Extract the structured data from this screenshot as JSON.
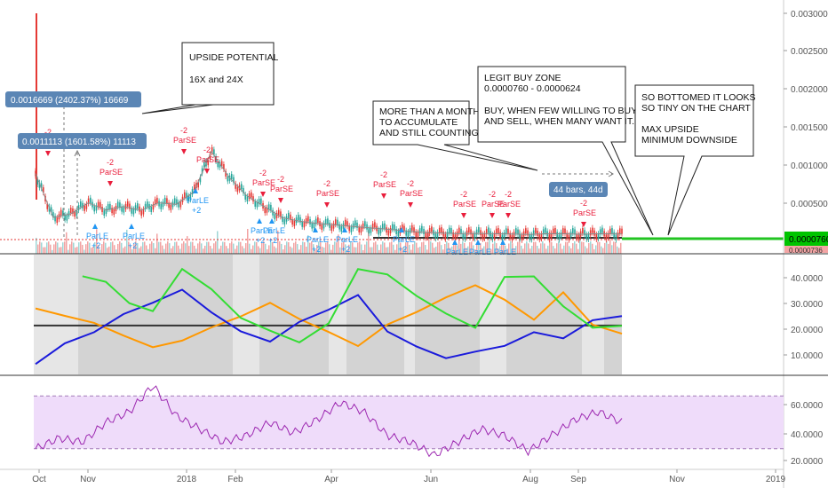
{
  "chart_data": [
    {
      "type": "candlestick",
      "panel": "price",
      "y_axis_ticks": [
        "0.0030000",
        "0.0025000",
        "0.0020000",
        "0.0015000",
        "0.0010000",
        "0.0005000"
      ],
      "ylim": [
        0,
        0.0031
      ],
      "current_price": "0.0000760",
      "current_price_color": "#00c400",
      "last_volume_label": "0.0000736",
      "price_path_x": [
        0.0,
        0.03,
        0.06,
        0.09,
        0.12,
        0.15,
        0.18,
        0.21,
        0.24,
        0.27,
        0.3,
        0.33,
        0.36,
        0.39,
        0.42,
        0.45,
        0.48,
        0.51,
        0.54,
        0.57,
        0.6,
        0.63,
        0.66,
        0.69,
        0.72,
        0.75,
        0.78,
        0.81,
        0.84,
        0.87,
        0.9,
        0.93,
        0.96,
        1.0
      ],
      "price_path_y": [
        0.0009,
        0.0003,
        0.00035,
        0.0005,
        0.0004,
        0.00045,
        0.0004,
        0.0005,
        0.00048,
        0.00065,
        0.0012,
        0.00085,
        0.0006,
        0.00045,
        0.0003,
        0.00025,
        0.00022,
        0.0002,
        0.00018,
        0.00016,
        0.00014,
        0.00012,
        0.0001,
        9e-05,
        8e-05,
        8.5e-05,
        8e-05,
        7.5e-05,
        7e-05,
        8e-05,
        7.8e-05,
        7.2e-05,
        8e-05,
        7.6e-05
      ],
      "tooltips": [
        {
          "text": "0.0016669 (2402.37%) 16669"
        },
        {
          "text": "0.0011113 (1601.58%) 11113"
        },
        {
          "text": "44 bars, 44d"
        }
      ],
      "signal_labels": {
        "short": [
          "-2",
          "ParSE"
        ],
        "long": [
          "ParLE",
          "+2"
        ]
      }
    },
    {
      "type": "line",
      "panel": "indicator",
      "y_axis_ticks": [
        "40.0000",
        "30.0000",
        "20.0000",
        "10.0000"
      ],
      "ylim": [
        0,
        49
      ],
      "baseline": 20,
      "series": [
        {
          "color": "#ff9800",
          "x": [
            0.0,
            0.05,
            0.1,
            0.15,
            0.2,
            0.25,
            0.3,
            0.35,
            0.4,
            0.45,
            0.5,
            0.55,
            0.6,
            0.65,
            0.7,
            0.75,
            0.8,
            0.85,
            0.9,
            0.95,
            1.0
          ],
          "y": [
            27,
            24,
            21,
            16,
            11,
            14,
            19,
            24,
            29,
            23,
            17,
            12,
            20,
            26,
            31,
            37,
            30,
            23,
            33,
            21,
            16
          ]
        },
        {
          "color": "#1a1adb",
          "x": [
            0.0,
            0.05,
            0.1,
            0.15,
            0.2,
            0.25,
            0.3,
            0.35,
            0.4,
            0.45,
            0.5,
            0.55,
            0.6,
            0.65,
            0.7,
            0.75,
            0.8,
            0.85,
            0.9,
            0.95,
            1.0
          ],
          "y": [
            5,
            12,
            18,
            24,
            30,
            34,
            26,
            17,
            14,
            21,
            27,
            32,
            18,
            11,
            7,
            9,
            12,
            17,
            15,
            22,
            24
          ]
        },
        {
          "color": "#33dd33",
          "x": [
            0.08,
            0.12,
            0.16,
            0.2,
            0.25,
            0.3,
            0.35,
            0.4,
            0.45,
            0.5,
            0.55,
            0.6,
            0.65,
            0.7,
            0.75,
            0.8,
            0.85,
            0.9,
            0.95,
            1.0
          ],
          "y": [
            41,
            37,
            30,
            25,
            44,
            34,
            24,
            17,
            14,
            20,
            44,
            40,
            33,
            24,
            20,
            39,
            41,
            27,
            20,
            19
          ]
        }
      ]
    },
    {
      "type": "line",
      "panel": "rsi",
      "y_axis_ticks": [
        "60.0000",
        "40.0000",
        "20.0000"
      ],
      "ylim": [
        15,
        85
      ],
      "band": [
        30,
        70
      ],
      "series": [
        {
          "color": "#9c27b0",
          "x": [
            0.0,
            0.04,
            0.08,
            0.12,
            0.16,
            0.2,
            0.24,
            0.28,
            0.32,
            0.36,
            0.4,
            0.44,
            0.48,
            0.52,
            0.56,
            0.6,
            0.64,
            0.68,
            0.72,
            0.76,
            0.8,
            0.84,
            0.88,
            0.92,
            0.96,
            1.0
          ],
          "y": [
            30,
            38,
            35,
            50,
            58,
            78,
            55,
            45,
            35,
            40,
            50,
            42,
            52,
            65,
            58,
            40,
            35,
            25,
            35,
            45,
            40,
            28,
            40,
            52,
            58,
            50
          ]
        }
      ]
    },
    {
      "type": "axis",
      "panel": "time",
      "tick_labels": [
        "Oct",
        "Nov",
        "2018",
        "Feb",
        "Apr",
        "Jun",
        "Aug",
        "Sep",
        "Nov",
        "2019"
      ]
    }
  ],
  "annotations": {
    "upside_potential": {
      "line1": "UPSIDE POTENTIAL",
      "line2": "16X and 24X"
    },
    "accumulate": {
      "line1": "MORE THAN A MONTH",
      "line2": "TO ACCUMULATE",
      "line3": "AND STILL COUNTING"
    },
    "buy_zone": {
      "line1": "LEGIT  BUY ZONE",
      "line2": "0.0000760 - 0.0000624",
      "line3": "BUY, WHEN FEW WILLING TO BUY",
      "line4": "AND SELL, WHEN MANY WANT IT."
    },
    "bottomed": {
      "line1": "SO BOTTOMED IT LOOKS",
      "line2": "SO TINY ON THE CHART",
      "line3": "MAX UPSIDE",
      "line4": "MINIMUM DOWNSIDE"
    }
  },
  "colors": {
    "long_signal": "#2196f3",
    "short_signal": "#e91e3c",
    "rsi_band_fill": "#efdcfa",
    "tooltip_bg": "#5b86b5"
  }
}
